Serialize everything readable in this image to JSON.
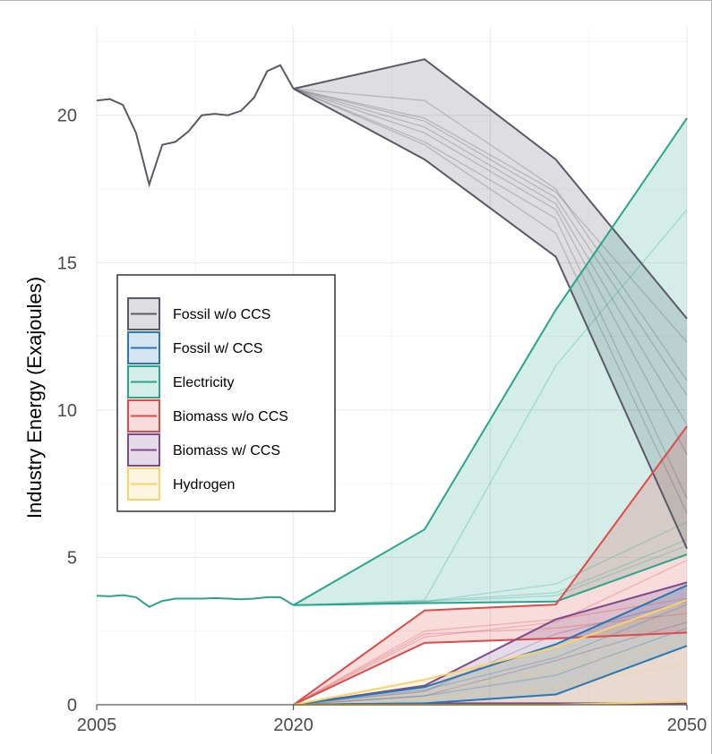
{
  "chart_data": {
    "type": "area",
    "title": "",
    "xlabel": "",
    "ylabel": "Industry Energy (Exajoules)",
    "xlim": [
      2005,
      2050
    ],
    "ylim": [
      0,
      23
    ],
    "x_ticks": [
      2005,
      2020,
      2050
    ],
    "y_ticks": [
      0,
      5,
      10,
      15,
      20
    ],
    "grid": true,
    "legend_position": "left-center",
    "colors": {
      "Fossil w/o CCS": "#595966",
      "Fossil w/ CCS": "#2876b2",
      "Electricity": "#2aa48a",
      "Biomass w/o CCS": "#de4a4a",
      "Biomass w/ CCS": "#7f4a8a",
      "Hydrogen": "#f8d26a"
    },
    "legend": [
      "Fossil w/o CCS",
      "Fossil w/ CCS",
      "Electricity",
      "Biomass w/o CCS",
      "Biomass w/ CCS",
      "Hydrogen"
    ],
    "historical": [
      {
        "name": "Fossil w/o CCS",
        "x": [
          2005,
          2006,
          2007,
          2008,
          2009,
          2010,
          2011,
          2012,
          2013,
          2014,
          2015,
          2016,
          2017,
          2018,
          2019,
          2020
        ],
        "y": [
          20.5,
          20.55,
          20.35,
          19.4,
          17.65,
          19.0,
          19.1,
          19.45,
          20.0,
          20.05,
          20.0,
          20.15,
          20.6,
          21.5,
          21.7,
          20.9
        ]
      },
      {
        "name": "Electricity",
        "x": [
          2005,
          2006,
          2007,
          2008,
          2009,
          2010,
          2011,
          2012,
          2013,
          2014,
          2015,
          2016,
          2017,
          2018,
          2019,
          2020
        ],
        "y": [
          3.7,
          3.68,
          3.72,
          3.65,
          3.32,
          3.52,
          3.6,
          3.6,
          3.6,
          3.62,
          3.6,
          3.58,
          3.6,
          3.65,
          3.65,
          3.38
        ]
      }
    ],
    "projections": {
      "x": [
        2020,
        2030,
        2040,
        2050
      ],
      "series": [
        {
          "name": "Fossil w/o CCS",
          "upper": [
            20.9,
            21.9,
            18.5,
            13.1
          ],
          "lower": [
            20.9,
            18.5,
            15.2,
            5.3
          ],
          "scenarios": [
            [
              20.9,
              20.5,
              17.5,
              11.0
            ],
            [
              20.9,
              19.8,
              17.2,
              10.5
            ],
            [
              20.9,
              19.6,
              17.0,
              9.5
            ],
            [
              20.9,
              19.4,
              16.8,
              8.5
            ],
            [
              20.9,
              19.1,
              16.5,
              7.0
            ],
            [
              20.9,
              19.9,
              17.4,
              12.3
            ],
            [
              20.9,
              19.0,
              16.0,
              6.5
            ]
          ]
        },
        {
          "name": "Electricity",
          "upper": [
            3.38,
            5.95,
            13.4,
            19.9
          ],
          "lower": [
            3.38,
            3.45,
            3.5,
            5.1
          ],
          "scenarios": [
            [
              3.38,
              3.55,
              11.5,
              16.8
            ],
            [
              3.38,
              3.5,
              4.1,
              6.2
            ],
            [
              3.38,
              3.52,
              3.8,
              5.6
            ],
            [
              3.38,
              3.5,
              3.7,
              5.4
            ]
          ]
        },
        {
          "name": "Biomass w/o CCS",
          "upper": [
            0,
            3.2,
            3.4,
            9.45
          ],
          "lower": [
            0,
            2.1,
            2.25,
            2.45
          ],
          "scenarios": [
            [
              0,
              2.3,
              2.8,
              4.9
            ],
            [
              0,
              2.5,
              2.9,
              3.6
            ],
            [
              0,
              2.4,
              2.6,
              3.1
            ]
          ]
        },
        {
          "name": "Biomass w/ CCS",
          "upper": [
            0,
            0.65,
            2.9,
            4.15
          ],
          "lower": [
            0,
            0.05,
            0.05,
            0.05
          ],
          "scenarios": [
            [
              0,
              0.45,
              2.4,
              3.5
            ],
            [
              0,
              0.3,
              1.5,
              2.8
            ]
          ]
        },
        {
          "name": "Fossil w/ CCS",
          "upper": [
            0,
            0.6,
            2.05,
            4.05
          ],
          "lower": [
            0,
            0.05,
            0.35,
            2.0
          ],
          "scenarios": [
            [
              0,
              0.5,
              1.6,
              3.4
            ],
            [
              0,
              0.3,
              1.0,
              2.6
            ]
          ]
        },
        {
          "name": "Hydrogen",
          "upper": [
            0,
            0.85,
            1.95,
            3.55
          ],
          "lower": [
            0,
            0.0,
            0.0,
            0.1
          ],
          "scenarios": [
            [
              0,
              0.4,
              1.2,
              2.2
            ],
            [
              0,
              0.2,
              0.6,
              1.4
            ]
          ]
        }
      ]
    }
  }
}
